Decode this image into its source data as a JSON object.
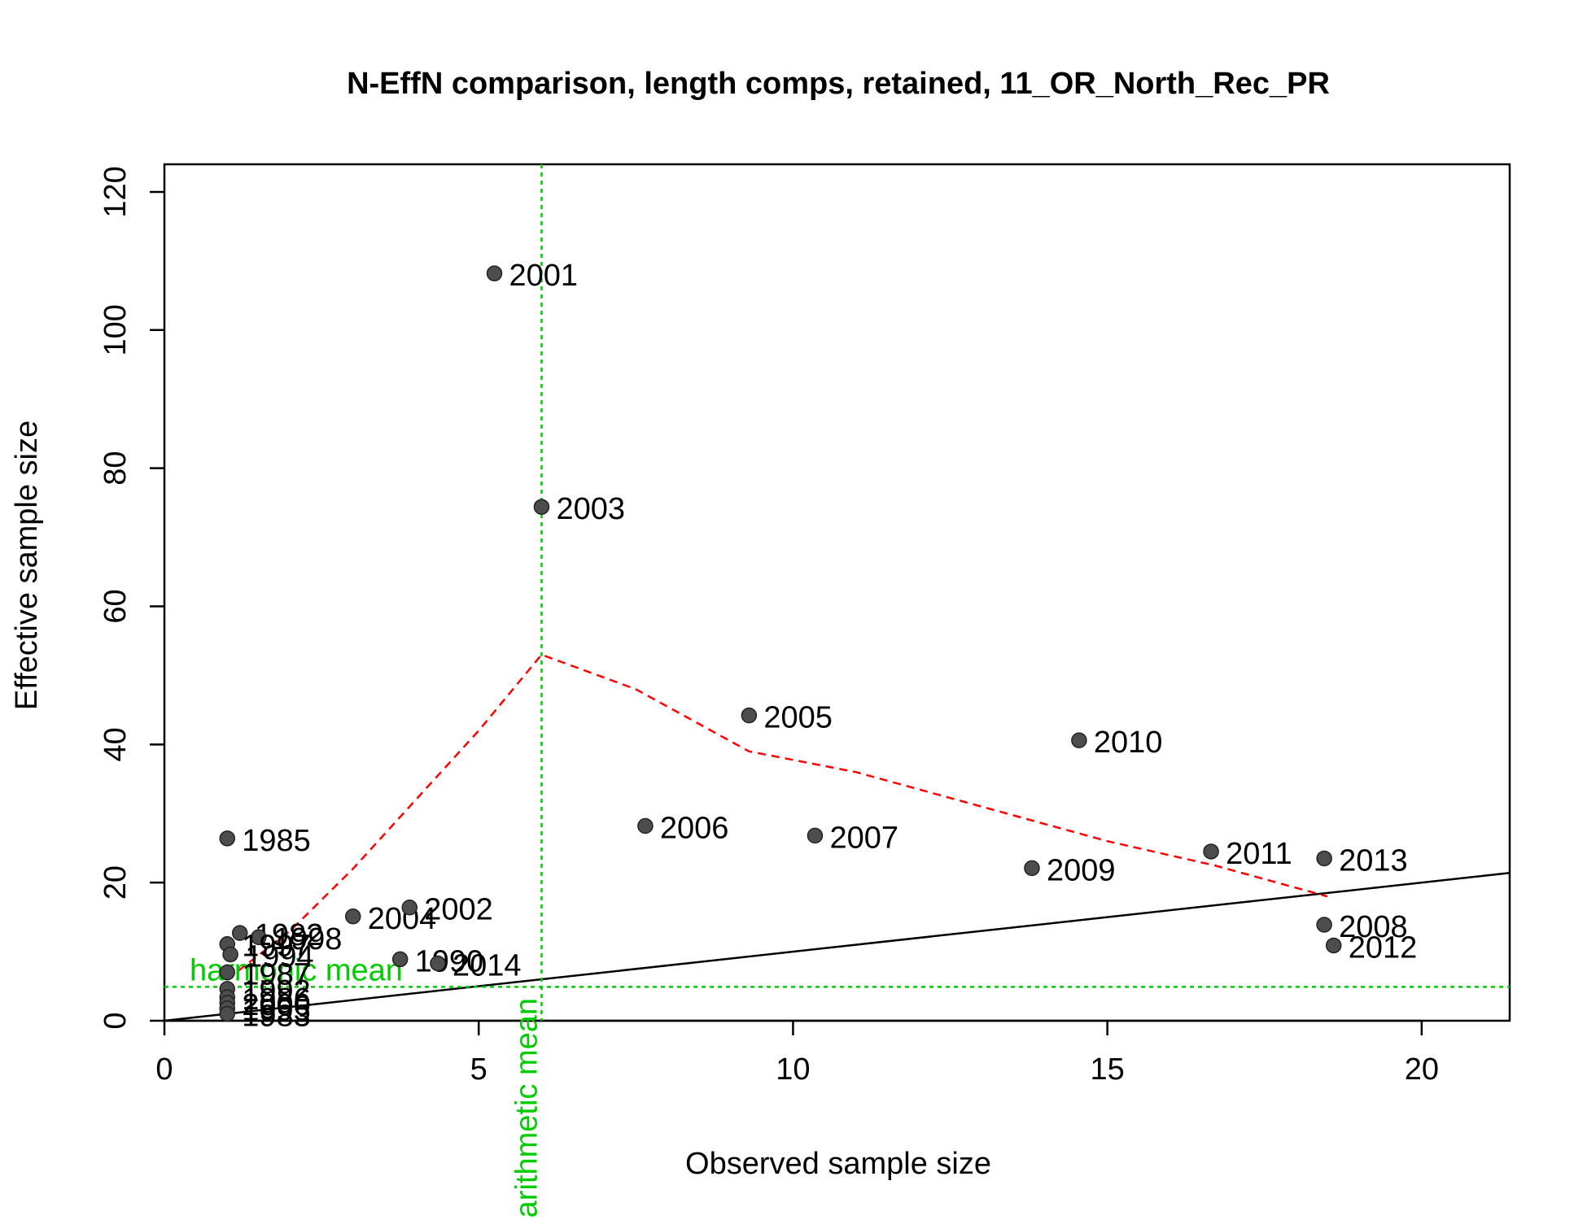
{
  "chart_data": {
    "type": "scatter",
    "title": "N-EffN comparison, length comps, retained, 11_OR_North_Rec_PR",
    "xlabel": "Observed sample size",
    "ylabel": "Effective sample size",
    "xlim": [
      0,
      21.4
    ],
    "ylim": [
      0,
      124
    ],
    "x_ticks": [
      0,
      5,
      10,
      15,
      20
    ],
    "y_ticks": [
      0,
      20,
      40,
      60,
      80,
      100,
      120
    ],
    "grid": false,
    "colors": {
      "points": "#4d4d4d",
      "one_to_one_line": "#000000",
      "smoother": "#ff0000",
      "means": "#00cc00"
    },
    "points": [
      {
        "label": "2001",
        "x": 5.25,
        "y": 108.2
      },
      {
        "label": "2003",
        "x": 6.0,
        "y": 74.4
      },
      {
        "label": "2005",
        "x": 9.3,
        "y": 44.2
      },
      {
        "label": "2010",
        "x": 14.55,
        "y": 40.6
      },
      {
        "label": "2006",
        "x": 7.65,
        "y": 28.2
      },
      {
        "label": "2007",
        "x": 10.35,
        "y": 26.8
      },
      {
        "label": "2009",
        "x": 13.8,
        "y": 22.1
      },
      {
        "label": "2011",
        "x": 16.65,
        "y": 24.5
      },
      {
        "label": "2013",
        "x": 18.45,
        "y": 23.5
      },
      {
        "label": "2008",
        "x": 18.45,
        "y": 13.9
      },
      {
        "label": "2012",
        "x": 18.6,
        "y": 10.9
      },
      {
        "label": "1985",
        "x": 1.0,
        "y": 26.4
      },
      {
        "label": "2004",
        "x": 3.0,
        "y": 15.1
      },
      {
        "label": "2002",
        "x": 3.9,
        "y": 16.4
      },
      {
        "label": "1990",
        "x": 3.75,
        "y": 8.9
      },
      {
        "label": "2014",
        "x": 4.35,
        "y": 8.3
      },
      {
        "label": "1982",
        "x": 1.2,
        "y": 12.7
      },
      {
        "label": "1998",
        "x": 1.5,
        "y": 12.1
      },
      {
        "label": "1997",
        "x": 1.0,
        "y": 11.1
      },
      {
        "label": "1994",
        "x": 1.05,
        "y": 9.6
      },
      {
        "label": "1987",
        "x": 1.0,
        "y": 7.0
      },
      {
        "label": "1992",
        "x": 1.0,
        "y": 4.6
      },
      {
        "label": "1986",
        "x": 1.0,
        "y": 3.4
      },
      {
        "label": "2000",
        "x": 1.0,
        "y": 2.6
      },
      {
        "label": "1995",
        "x": 1.0,
        "y": 1.8
      },
      {
        "label": "1983",
        "x": 1.0,
        "y": 1.0
      }
    ],
    "one_to_one_line": {
      "x": [
        0,
        21.4
      ],
      "y": [
        0,
        21.4
      ]
    },
    "smoother": {
      "x": [
        1.0,
        2.0,
        3.0,
        4.0,
        5.0,
        6.0,
        7.5,
        9.3,
        11.0,
        13.0,
        15.0,
        16.7,
        18.5
      ],
      "y": [
        6.0,
        13.0,
        22.0,
        32.0,
        42.0,
        53.0,
        48.0,
        39.0,
        36.0,
        31.0,
        26.0,
        22.5,
        18.0
      ]
    },
    "harmonic_mean": {
      "label": "harmonic mean",
      "y": 4.9
    },
    "arithmetic_mean": {
      "label": "arithmetic mean",
      "x": 6.0
    }
  }
}
